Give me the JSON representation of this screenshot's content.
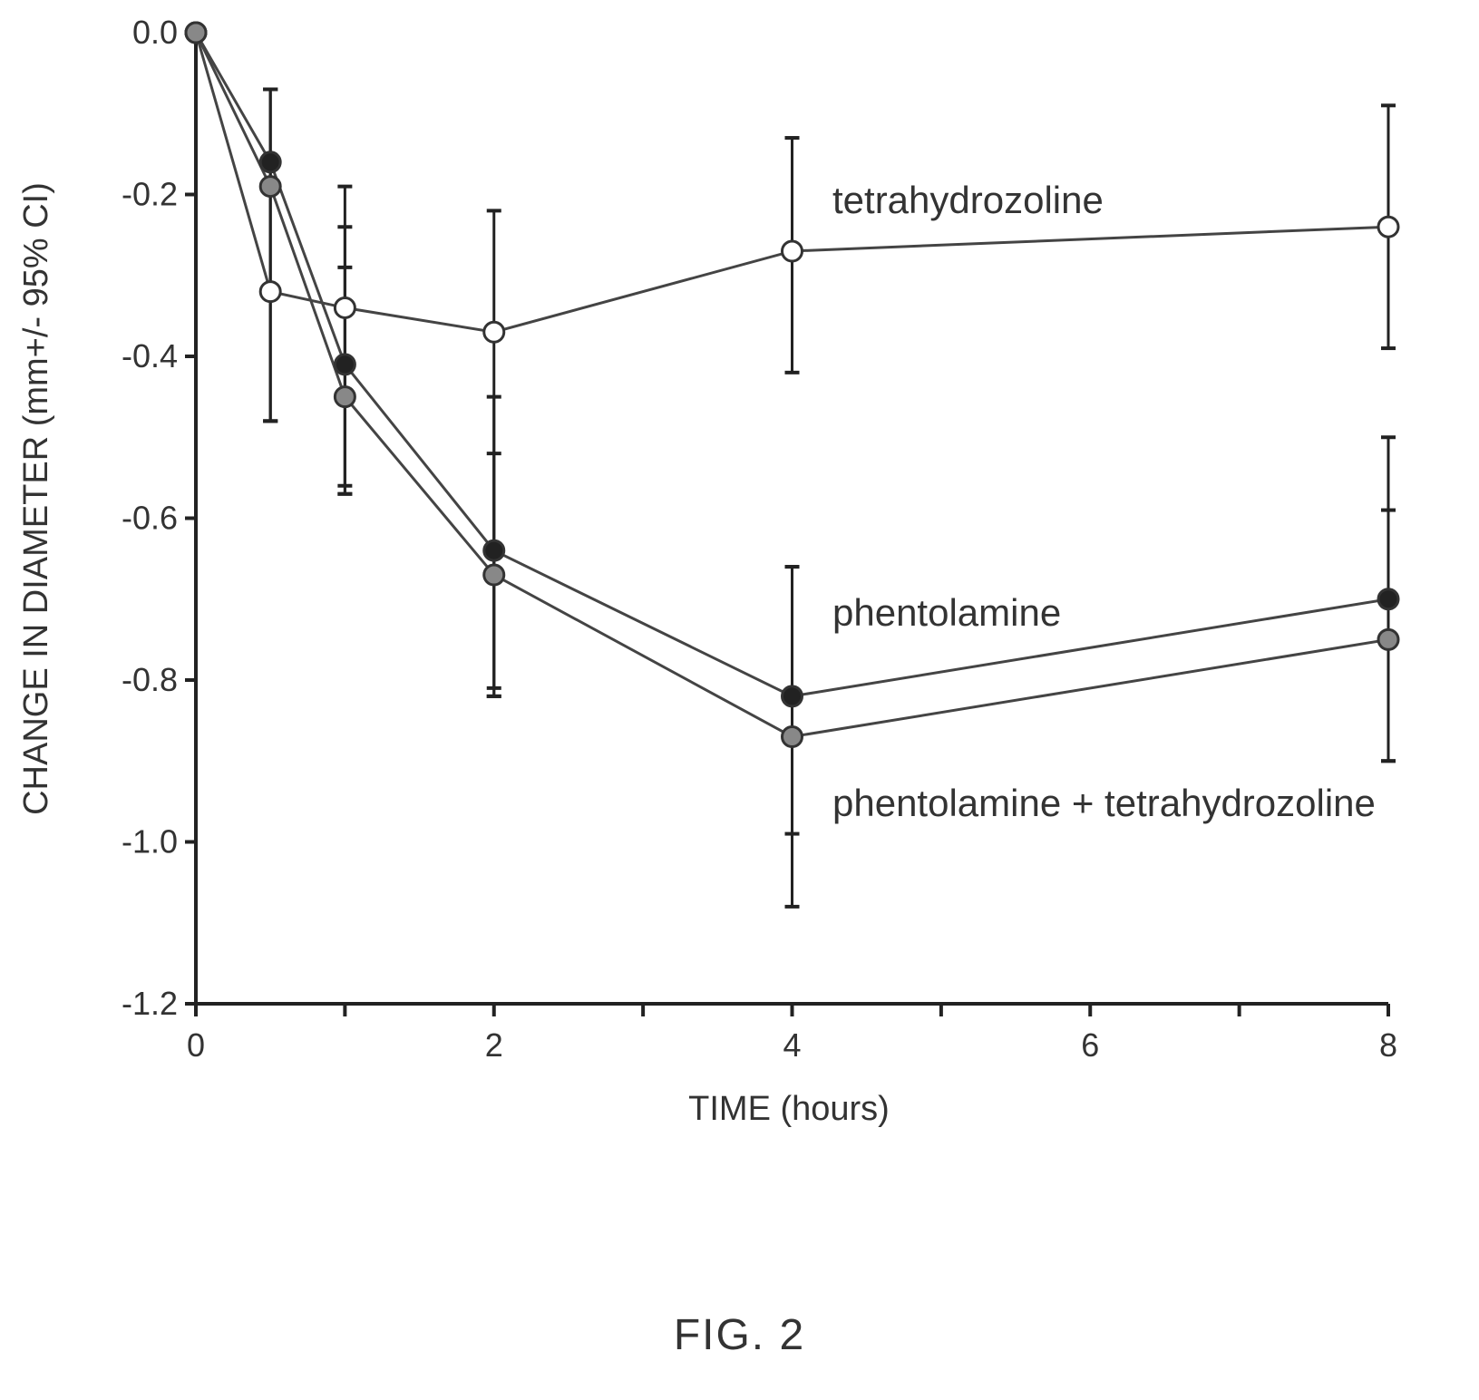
{
  "figure_label": "FIG. 2",
  "colors": {
    "axis": "#222222",
    "text": "#333333",
    "filled_marker": "#222222",
    "gray_marker": "#888888",
    "open_marker": "#ffffff"
  },
  "chart_data": {
    "type": "line",
    "xlabel": "TIME (hours)",
    "ylabel": "CHANGE IN DIAMETER (mm+/- 95% CI)",
    "xlim": [
      0,
      8
    ],
    "ylim": [
      -1.2,
      0.0
    ],
    "xticks": [
      0,
      2,
      4,
      6,
      8
    ],
    "xticks_minor": [
      1,
      3,
      5,
      7
    ],
    "yticks": [
      0.0,
      -0.2,
      -0.4,
      -0.6,
      -0.8,
      -1.0,
      -1.2
    ],
    "ytick_labels": [
      "0.0",
      "-0.2",
      "-0.4",
      "-0.6",
      "-0.8",
      "-1.0",
      "-1.2"
    ],
    "x": [
      0,
      0.5,
      1,
      2,
      4,
      8
    ],
    "series": [
      {
        "name": "tetrahydrozoline",
        "marker": "open",
        "values": [
          0.0,
          -0.32,
          -0.34,
          -0.37,
          -0.27,
          -0.24
        ],
        "ci_low": [
          0.0,
          -0.48,
          -0.57,
          -0.82,
          -0.42,
          -0.39
        ],
        "ci_high": [
          0.0,
          -0.07,
          -0.19,
          -0.22,
          -0.13,
          -0.09
        ]
      },
      {
        "name": "phentolamine",
        "marker": "filled",
        "values": [
          0.0,
          -0.16,
          -0.41,
          -0.64,
          -0.82,
          -0.7
        ],
        "ci_low": [
          0.0,
          -0.48,
          -0.57,
          -0.82,
          -0.99,
          -0.9
        ],
        "ci_high": [
          0.0,
          -0.07,
          -0.24,
          -0.45,
          -0.66,
          -0.5
        ]
      },
      {
        "name": "phentolamine + tetrahydrozoline",
        "marker": "gray",
        "values": [
          0.0,
          -0.19,
          -0.45,
          -0.67,
          -0.87,
          -0.75
        ],
        "ci_low": [
          0.0,
          -0.48,
          -0.56,
          -0.81,
          -1.08,
          -0.9
        ],
        "ci_high": [
          0.0,
          -0.07,
          -0.29,
          -0.52,
          -0.66,
          -0.59
        ]
      }
    ],
    "grid": false,
    "legend": "inline labels at right"
  }
}
